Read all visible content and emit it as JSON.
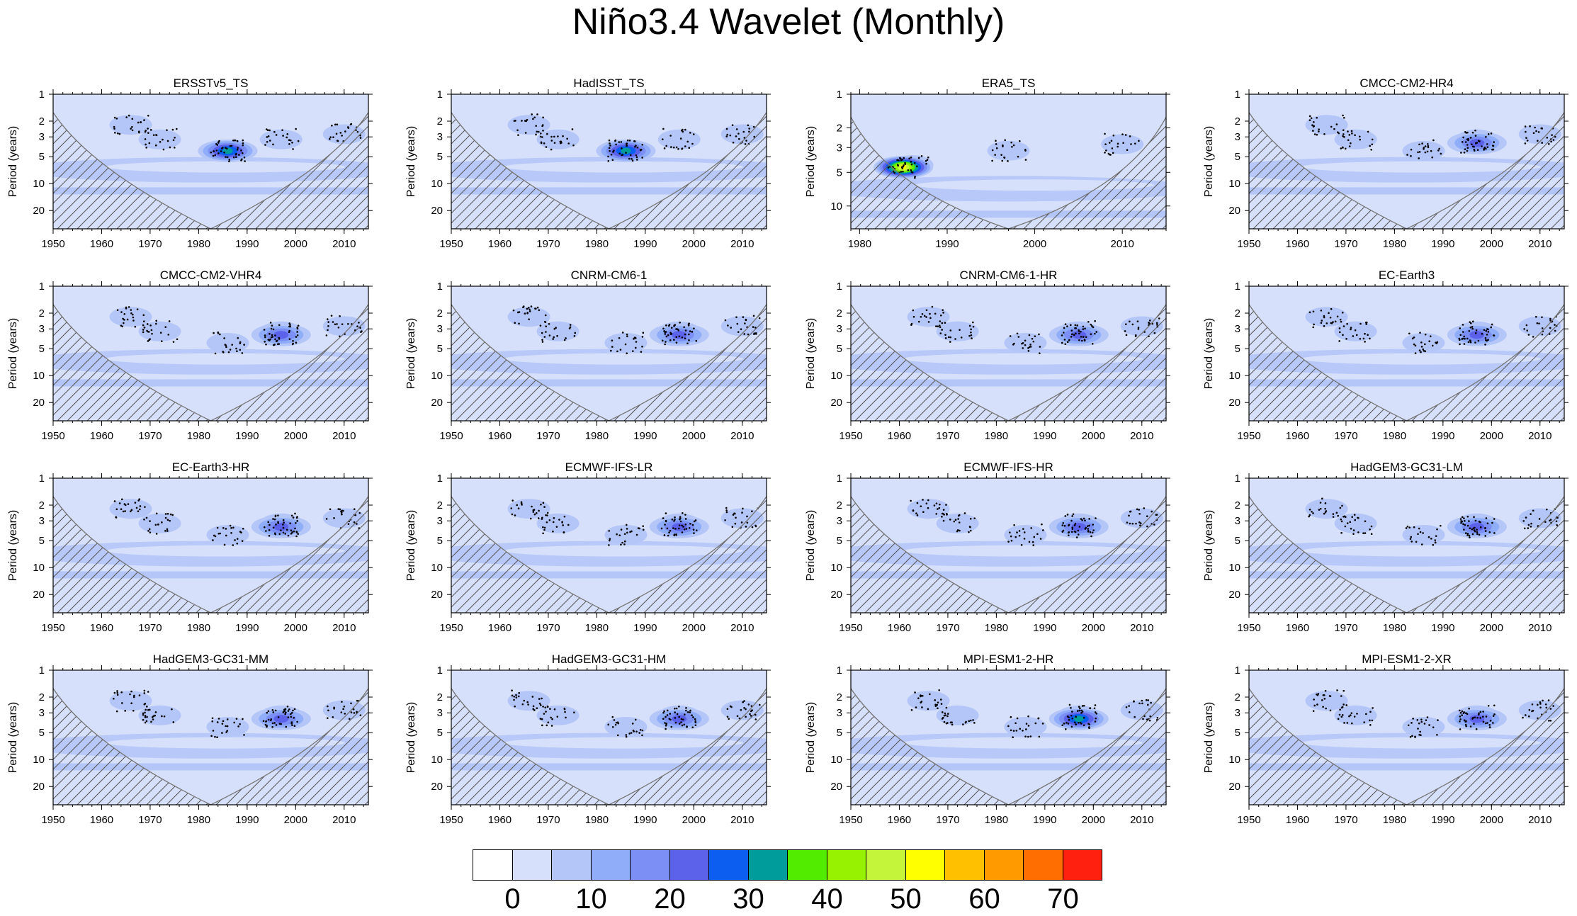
{
  "figure": {
    "title": "Niño3.4 Wavelet (Monthly)"
  },
  "colorbar": {
    "colors": [
      "#ffffff",
      "#d6e0fb",
      "#b4c5f8",
      "#8fadf8",
      "#7b8ff4",
      "#5c63ea",
      "#0b5ef0",
      "#009c9c",
      "#52ec00",
      "#96f200",
      "#c4f53a",
      "#ffff00",
      "#ffc000",
      "#ff9a00",
      "#ff6e00",
      "#ff2010"
    ],
    "labels": [
      "0",
      "10",
      "20",
      "30",
      "40",
      "50",
      "60",
      "70"
    ]
  },
  "chart_data": [
    {
      "type": "heatmap",
      "title": "ERSSTv5_TS",
      "ylabel": "Period (years)",
      "xlim": [
        1950,
        2015
      ],
      "x_ticks": [
        "1950",
        "1960",
        "1970",
        "1980",
        "1990",
        "2000",
        "2010"
      ],
      "y_ticks": [
        "1",
        "2",
        "3",
        "5",
        "10",
        "20"
      ],
      "hotspot": {
        "year": 1986,
        "period_years": 4.3,
        "max_power": 30
      }
    },
    {
      "type": "heatmap",
      "title": "HadISST_TS",
      "ylabel": "Period (years)",
      "xlim": [
        1950,
        2015
      ],
      "x_ticks": [
        "1950",
        "1960",
        "1970",
        "1980",
        "1990",
        "2000",
        "2010"
      ],
      "y_ticks": [
        "1",
        "2",
        "3",
        "5",
        "10",
        "20"
      ],
      "hotspot": {
        "year": 1986,
        "period_years": 4.3,
        "max_power": 30
      }
    },
    {
      "type": "heatmap",
      "title": "ERA5_TS",
      "ylabel": "Period (years)",
      "xlim": [
        1979,
        2015
      ],
      "x_ticks": [
        "1980",
        "1990",
        "2000",
        "2010"
      ],
      "y_ticks": [
        "1",
        "2",
        "3",
        "5",
        "10"
      ],
      "hotspot": {
        "year": 1985,
        "period_years": 4.5,
        "max_power": 48
      }
    },
    {
      "type": "heatmap",
      "title": "CMCC-CM2-HR4",
      "ylabel": "Period (years)",
      "xlim": [
        1950,
        2015
      ],
      "x_ticks": [
        "1950",
        "1960",
        "1970",
        "1980",
        "1990",
        "2000",
        "2010"
      ],
      "y_ticks": [
        "1",
        "2",
        "3",
        "5",
        "10",
        "20"
      ],
      "hotspot": {
        "year": 1997,
        "period_years": 3.5,
        "max_power": 20
      }
    },
    {
      "type": "heatmap",
      "title": "CMCC-CM2-VHR4",
      "ylabel": "Period (years)",
      "xlim": [
        1950,
        2015
      ],
      "x_ticks": [
        "1950",
        "1960",
        "1970",
        "1980",
        "1990",
        "2000",
        "2010"
      ],
      "y_ticks": [
        "1",
        "2",
        "3",
        "5",
        "10",
        "20"
      ],
      "hotspot": {
        "year": 1997,
        "period_years": 3.5,
        "max_power": 20
      }
    },
    {
      "type": "heatmap",
      "title": "CNRM-CM6-1",
      "ylabel": "Period (years)",
      "xlim": [
        1950,
        2015
      ],
      "x_ticks": [
        "1950",
        "1960",
        "1970",
        "1980",
        "1990",
        "2000",
        "2010"
      ],
      "y_ticks": [
        "1",
        "2",
        "3",
        "5",
        "10",
        "20"
      ],
      "hotspot": {
        "year": 1997,
        "period_years": 3.5,
        "max_power": 20
      }
    },
    {
      "type": "heatmap",
      "title": "CNRM-CM6-1-HR",
      "ylabel": "Period (years)",
      "xlim": [
        1950,
        2015
      ],
      "x_ticks": [
        "1950",
        "1960",
        "1970",
        "1980",
        "1990",
        "2000",
        "2010"
      ],
      "y_ticks": [
        "1",
        "2",
        "3",
        "5",
        "10",
        "20"
      ],
      "hotspot": {
        "year": 1997,
        "period_years": 3.5,
        "max_power": 20
      }
    },
    {
      "type": "heatmap",
      "title": "EC-Earth3",
      "ylabel": "Period (years)",
      "xlim": [
        1950,
        2015
      ],
      "x_ticks": [
        "1950",
        "1960",
        "1970",
        "1980",
        "1990",
        "2000",
        "2010"
      ],
      "y_ticks": [
        "1",
        "2",
        "3",
        "5",
        "10",
        "20"
      ],
      "hotspot": {
        "year": 1997,
        "period_years": 3.5,
        "max_power": 20
      }
    },
    {
      "type": "heatmap",
      "title": "EC-Earth3-HR",
      "ylabel": "Period (years)",
      "xlim": [
        1950,
        2015
      ],
      "x_ticks": [
        "1950",
        "1960",
        "1970",
        "1980",
        "1990",
        "2000",
        "2010"
      ],
      "y_ticks": [
        "1",
        "2",
        "3",
        "5",
        "10",
        "20"
      ],
      "hotspot": {
        "year": 1997,
        "period_years": 3.5,
        "max_power": 20
      }
    },
    {
      "type": "heatmap",
      "title": "ECMWF-IFS-LR",
      "ylabel": "Period (years)",
      "xlim": [
        1950,
        2015
      ],
      "x_ticks": [
        "1950",
        "1960",
        "1970",
        "1980",
        "1990",
        "2000",
        "2010"
      ],
      "y_ticks": [
        "1",
        "2",
        "3",
        "5",
        "10",
        "20"
      ],
      "hotspot": {
        "year": 1997,
        "period_years": 3.5,
        "max_power": 20
      }
    },
    {
      "type": "heatmap",
      "title": "ECMWF-IFS-HR",
      "ylabel": "Period (years)",
      "xlim": [
        1950,
        2015
      ],
      "x_ticks": [
        "1950",
        "1960",
        "1970",
        "1980",
        "1990",
        "2000",
        "2010"
      ],
      "y_ticks": [
        "1",
        "2",
        "3",
        "5",
        "10",
        "20"
      ],
      "hotspot": {
        "year": 1997,
        "period_years": 3.5,
        "max_power": 20
      }
    },
    {
      "type": "heatmap",
      "title": "HadGEM3-GC31-LM",
      "ylabel": "Period (years)",
      "xlim": [
        1950,
        2015
      ],
      "x_ticks": [
        "1950",
        "1960",
        "1970",
        "1980",
        "1990",
        "2000",
        "2010"
      ],
      "y_ticks": [
        "1",
        "2",
        "3",
        "5",
        "10",
        "20"
      ],
      "hotspot": {
        "year": 1997,
        "period_years": 3.5,
        "max_power": 20
      }
    },
    {
      "type": "heatmap",
      "title": "HadGEM3-GC31-MM",
      "ylabel": "Period (years)",
      "xlim": [
        1950,
        2015
      ],
      "x_ticks": [
        "1950",
        "1960",
        "1970",
        "1980",
        "1990",
        "2000",
        "2010"
      ],
      "y_ticks": [
        "1",
        "2",
        "3",
        "5",
        "10",
        "20"
      ],
      "hotspot": {
        "year": 1997,
        "period_years": 3.5,
        "max_power": 20
      }
    },
    {
      "type": "heatmap",
      "title": "HadGEM3-GC31-HM",
      "ylabel": "Period (years)",
      "xlim": [
        1950,
        2015
      ],
      "x_ticks": [
        "1950",
        "1960",
        "1970",
        "1980",
        "1990",
        "2000",
        "2010"
      ],
      "y_ticks": [
        "1",
        "2",
        "3",
        "5",
        "10",
        "20"
      ],
      "hotspot": {
        "year": 1997,
        "period_years": 3.5,
        "max_power": 20
      }
    },
    {
      "type": "heatmap",
      "title": "MPI-ESM1-2-HR",
      "ylabel": "Period (years)",
      "xlim": [
        1950,
        2015
      ],
      "x_ticks": [
        "1950",
        "1960",
        "1970",
        "1980",
        "1990",
        "2000",
        "2010"
      ],
      "y_ticks": [
        "1",
        "2",
        "3",
        "5",
        "10",
        "20"
      ],
      "hotspot": {
        "year": 1997,
        "period_years": 3.5,
        "max_power": 25
      }
    },
    {
      "type": "heatmap",
      "title": "MPI-ESM1-2-XR",
      "ylabel": "Period (years)",
      "xlim": [
        1950,
        2015
      ],
      "x_ticks": [
        "1950",
        "1960",
        "1970",
        "1980",
        "1990",
        "2000",
        "2010"
      ],
      "y_ticks": [
        "1",
        "2",
        "3",
        "5",
        "10",
        "20"
      ],
      "hotspot": {
        "year": 1997,
        "period_years": 3.5,
        "max_power": 20
      }
    }
  ]
}
